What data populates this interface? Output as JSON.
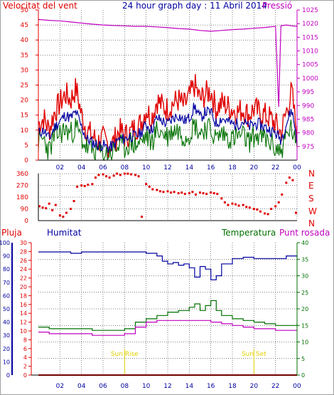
{
  "title": "24 hour graph day : 11 Abril 2014",
  "colors": {
    "red": "#e00000",
    "blue": "#0000a0",
    "green": "#007000",
    "magenta": "#c000c0",
    "grid": "#000000",
    "sun": "#e0d000",
    "frame": "#a0a0a0"
  },
  "x_ticks": [
    "02",
    "04",
    "06",
    "08",
    "10",
    "12",
    "14",
    "16",
    "18",
    "20",
    "22",
    "00"
  ],
  "chart_data": [
    {
      "type": "line",
      "name": "wind-pressure",
      "left_label": "Velocitat del vent",
      "right_label": "Pressió",
      "ylim": [
        0,
        50
      ],
      "y_ticks": [
        0,
        5,
        10,
        15,
        20,
        25,
        30,
        35,
        40,
        45,
        50
      ],
      "y2lim": [
        970,
        1025
      ],
      "y2_ticks": [
        975,
        980,
        985,
        990,
        995,
        1000,
        1005,
        1010,
        1015,
        1020,
        1025
      ],
      "xlim": [
        0,
        24
      ],
      "series": [
        {
          "name": "Gust",
          "color": "#e00000",
          "x": [
            0,
            0.5,
            1,
            1.5,
            2,
            2.5,
            3,
            3.5,
            4,
            4.5,
            5,
            5.5,
            6,
            6.5,
            7,
            7.5,
            8,
            8.5,
            9,
            9.5,
            10,
            10.5,
            11,
            11.5,
            12,
            12.5,
            13,
            13.5,
            14,
            14.5,
            15,
            15.5,
            16,
            16.5,
            17,
            17.5,
            18,
            18.5,
            19,
            19.5,
            20,
            20.5,
            21,
            21.5,
            22,
            22.5,
            23,
            23.5,
            24
          ],
          "values": [
            12,
            14,
            10,
            16,
            19,
            22,
            20,
            24,
            15,
            10,
            8,
            6,
            7,
            5,
            6,
            10,
            8,
            9,
            11,
            12,
            17,
            14,
            20,
            18,
            17,
            19,
            20,
            18,
            21,
            25,
            20,
            22,
            23,
            17,
            19,
            18,
            17,
            16,
            17,
            15,
            17,
            16,
            15,
            14,
            12,
            9,
            16,
            23,
            8
          ]
        },
        {
          "name": "Average",
          "color": "#0000a0",
          "x": [
            0,
            0.5,
            1,
            1.5,
            2,
            2.5,
            3,
            3.5,
            4,
            4.5,
            5,
            5.5,
            6,
            6.5,
            7,
            7.5,
            8,
            8.5,
            9,
            9.5,
            10,
            10.5,
            11,
            11.5,
            12,
            12.5,
            13,
            13.5,
            14,
            14.5,
            15,
            15.5,
            16,
            16.5,
            17,
            17.5,
            18,
            18.5,
            19,
            19.5,
            20,
            20.5,
            21,
            21.5,
            22,
            22.5,
            23,
            23.5,
            24
          ],
          "values": [
            9,
            10,
            7,
            11,
            13,
            15,
            14,
            16,
            11,
            7,
            6,
            5,
            5,
            4,
            5,
            7,
            7,
            8,
            8,
            9,
            12,
            10,
            14,
            13,
            12,
            14,
            15,
            13,
            14,
            18,
            14,
            16,
            16,
            12,
            14,
            13,
            12,
            12,
            13,
            11,
            12,
            12,
            11,
            10,
            9,
            7,
            12,
            17,
            7
          ]
        },
        {
          "name": "Minimum",
          "color": "#007000",
          "x": [
            0,
            0.5,
            1,
            1.5,
            2,
            2.5,
            3,
            3.5,
            4,
            4.5,
            5,
            5.5,
            6,
            6.5,
            7,
            7.5,
            8,
            8.5,
            9,
            9.5,
            10,
            10.5,
            11,
            11.5,
            12,
            12.5,
            13,
            13.5,
            14,
            14.5,
            15,
            15.5,
            16,
            16.5,
            17,
            17.5,
            18,
            18.5,
            19,
            19.5,
            20,
            20.5,
            21,
            21.5,
            22,
            22.5,
            23,
            23.5,
            24
          ],
          "values": [
            6,
            7,
            3,
            8,
            9,
            10,
            9,
            11,
            7,
            4,
            3,
            3,
            2,
            2,
            3,
            5,
            4,
            6,
            5,
            6,
            8,
            6,
            10,
            9,
            8,
            10,
            10,
            8,
            9,
            12,
            9,
            11,
            10,
            7,
            9,
            8,
            7,
            8,
            8,
            6,
            8,
            8,
            7,
            6,
            4,
            3,
            8,
            11,
            2
          ]
        },
        {
          "name": "Pressió",
          "color": "#c000c0",
          "axis": "right",
          "x": [
            0,
            1,
            2,
            3,
            4,
            5,
            6,
            7,
            8,
            9,
            10,
            11,
            12,
            13,
            14,
            15,
            16,
            17,
            18,
            19,
            20,
            21,
            22,
            22.3,
            22.5,
            23,
            23.5,
            24
          ],
          "values": [
            1021.5,
            1021.2,
            1021.0,
            1020.6,
            1020.2,
            1019.8,
            1019.5,
            1019.3,
            1019.2,
            1019.0,
            1019.0,
            1018.8,
            1018.5,
            1018.2,
            1018.0,
            1017.5,
            1017.2,
            1017.5,
            1017.8,
            1018.0,
            1018.3,
            1018.6,
            1019.0,
            989.5,
            1019.2,
            1019.5,
            1019.2,
            1019.0
          ]
        }
      ]
    },
    {
      "type": "scatter",
      "name": "wind-direction",
      "ylim": [
        0,
        360
      ],
      "y_ticks": [
        0,
        90,
        180,
        270,
        360
      ],
      "right_labels": [
        "N",
        "W",
        "S",
        "E",
        "N"
      ],
      "x": [
        0.1,
        0.4,
        0.7,
        1.0,
        1.3,
        1.6,
        2.0,
        2.3,
        2.6,
        3.0,
        3.3,
        3.6,
        4.0,
        4.3,
        4.6,
        5.0,
        5.3,
        5.6,
        6.0,
        6.3,
        6.6,
        7.0,
        7.3,
        7.6,
        8.0,
        8.3,
        8.6,
        9.0,
        9.3,
        9.6,
        10.0,
        10.3,
        10.6,
        11.0,
        11.3,
        11.6,
        12.0,
        12.3,
        12.6,
        13.0,
        13.3,
        13.6,
        14.0,
        14.3,
        14.6,
        15.0,
        15.3,
        15.6,
        16.0,
        16.3,
        16.6,
        17.0,
        17.3,
        17.6,
        18.0,
        18.3,
        18.6,
        19.0,
        19.3,
        19.6,
        20.0,
        20.3,
        20.6,
        21.0,
        21.3,
        21.6,
        22.0,
        22.3,
        22.6,
        23.0,
        23.3,
        23.6,
        23.9
      ],
      "values": [
        110,
        100,
        95,
        130,
        80,
        120,
        40,
        30,
        60,
        90,
        150,
        260,
        270,
        265,
        275,
        280,
        330,
        350,
        355,
        340,
        330,
        345,
        360,
        350,
        360,
        360,
        355,
        350,
        340,
        30,
        280,
        260,
        240,
        235,
        225,
        220,
        225,
        215,
        220,
        210,
        215,
        205,
        210,
        220,
        200,
        215,
        210,
        205,
        215,
        210,
        205,
        170,
        140,
        120,
        130,
        125,
        115,
        120,
        105,
        100,
        90,
        85,
        70,
        55,
        50,
        90,
        110,
        140,
        200,
        290,
        330,
        310,
        60
      ]
    },
    {
      "type": "line",
      "name": "temp-hum-rain",
      "labels": [
        "Pluja",
        "Humitat",
        "Temperatura",
        "Punt rosada"
      ],
      "rain_ylim": [
        0,
        30
      ],
      "rain_ticks": [
        0,
        2,
        4,
        6,
        8,
        10,
        12,
        14,
        16,
        18,
        20,
        22,
        24,
        26,
        28,
        30
      ],
      "hum_ylim": [
        0,
        100
      ],
      "hum_ticks": [
        0,
        10,
        20,
        30,
        40,
        50,
        60,
        70,
        80,
        90,
        100
      ],
      "temp_ylim": [
        0,
        40
      ],
      "temp_ticks": [
        0,
        5,
        10,
        15,
        20,
        25,
        30,
        35,
        40
      ],
      "annotations": [
        {
          "text": "Sun Rise",
          "x": 8.0
        },
        {
          "text": "Sun Set",
          "x": 20.0
        }
      ],
      "series": [
        {
          "name": "Humitat",
          "color": "#0000a0",
          "axis": "hum",
          "x": [
            0,
            1,
            2,
            3,
            4,
            5,
            6,
            7,
            8,
            9,
            10,
            11,
            11.5,
            12,
            12.5,
            13,
            13.5,
            14,
            14.5,
            15,
            15.5,
            16,
            16.5,
            17,
            18,
            19,
            20,
            21,
            22,
            23,
            24
          ],
          "values": [
            93,
            93,
            93,
            92,
            93,
            93,
            93,
            93,
            93,
            93,
            92,
            90,
            86,
            84,
            85,
            83,
            84,
            81,
            74,
            82,
            80,
            72,
            75,
            84,
            88,
            89,
            88,
            88,
            88,
            90,
            89
          ]
        },
        {
          "name": "Temperatura",
          "color": "#007000",
          "axis": "temp",
          "x": [
            0,
            1,
            2,
            3,
            4,
            5,
            6,
            7,
            8,
            9,
            10,
            11,
            12,
            13,
            14,
            14.5,
            15,
            15.5,
            16,
            16.5,
            17,
            18,
            19,
            20,
            21,
            22,
            23,
            24
          ],
          "values": [
            14.5,
            14,
            14,
            14,
            14,
            13.5,
            13.5,
            13.5,
            14,
            16,
            17,
            18,
            19,
            19.5,
            20.5,
            21.5,
            19.5,
            21,
            22.5,
            19.5,
            18,
            17,
            16.5,
            16,
            15.5,
            15,
            15,
            15.5
          ]
        },
        {
          "name": "Punt rosada",
          "color": "#c000c0",
          "axis": "temp",
          "x": [
            0,
            1,
            2,
            3,
            4,
            5,
            6,
            7,
            8,
            9,
            10,
            11,
            12,
            13,
            14,
            15,
            16,
            17,
            18,
            19,
            20,
            21,
            22,
            23,
            24
          ],
          "values": [
            13,
            12.5,
            12.5,
            12.5,
            12.5,
            12,
            12,
            12,
            12.5,
            14.5,
            16,
            16.5,
            16.5,
            16.5,
            16.5,
            16.5,
            16,
            15.5,
            15,
            14.5,
            14,
            14,
            13.5,
            13.5,
            13.5
          ]
        },
        {
          "name": "Pluja",
          "color": "#e00000",
          "axis": "rain",
          "x": [
            0,
            24
          ],
          "values": [
            0,
            0
          ]
        }
      ]
    }
  ]
}
